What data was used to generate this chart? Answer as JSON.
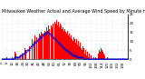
{
  "title": "Milwaukee Weather Actual and Average Wind Speed by Minute mph (Last 24 Hours)",
  "bar_color": "#ff0000",
  "line_color": "#0000cc",
  "background_color": "#ffffff",
  "grid_color": "#cccccc",
  "ylim": [
    0,
    25
  ],
  "n_points": 144,
  "actual_wind": [
    0,
    0,
    0,
    0,
    0,
    0,
    1,
    0,
    0,
    0,
    0,
    0,
    1,
    0,
    0,
    4,
    3,
    0,
    0,
    0,
    0,
    2,
    0,
    3,
    2,
    0,
    6,
    5,
    0,
    0,
    0,
    7,
    0,
    9,
    0,
    11,
    0,
    10,
    13,
    0,
    12,
    0,
    11,
    14,
    13,
    15,
    14,
    0,
    14,
    16,
    15,
    18,
    16,
    19,
    17,
    0,
    19,
    18,
    20,
    0,
    21,
    20,
    22,
    21,
    19,
    21,
    18,
    20,
    19,
    17,
    18,
    16,
    17,
    15,
    14,
    16,
    13,
    14,
    12,
    13,
    11,
    10,
    12,
    11,
    9,
    11,
    8,
    10,
    7,
    9,
    6,
    5,
    7,
    4,
    6,
    3,
    5,
    2,
    4,
    1,
    3,
    0,
    2,
    0,
    0,
    1,
    0,
    1,
    0,
    0,
    3,
    5,
    4,
    6,
    5,
    4,
    3,
    2,
    0,
    0,
    1,
    0,
    0,
    0,
    0,
    0,
    0,
    0,
    0,
    0,
    0,
    0,
    0,
    0,
    0,
    0,
    0,
    0,
    0,
    0,
    0,
    0,
    0,
    0
  ],
  "avg_wind": [
    0,
    0,
    0,
    0,
    0,
    0,
    0,
    0,
    0,
    0,
    0,
    0,
    0,
    0,
    1,
    1,
    1,
    1,
    1,
    1,
    1,
    2,
    2,
    2,
    3,
    3,
    3,
    4,
    4,
    5,
    5,
    5,
    6,
    7,
    7,
    8,
    8,
    9,
    9,
    10,
    10,
    11,
    11,
    12,
    12,
    12,
    13,
    13,
    14,
    14,
    14,
    14,
    15,
    15,
    14,
    14,
    13,
    13,
    12,
    12,
    11,
    11,
    10,
    10,
    9,
    9,
    8,
    8,
    7,
    7,
    6,
    6,
    5,
    5,
    5,
    4,
    4,
    4,
    3,
    3,
    3,
    2,
    2,
    2,
    2,
    2,
    1,
    1,
    1,
    1,
    1,
    1,
    1,
    0,
    0,
    0,
    0,
    0,
    0,
    0,
    0,
    0,
    0,
    0,
    0,
    0,
    0,
    0,
    0,
    0,
    0,
    0,
    0,
    0,
    0,
    0,
    0,
    0,
    0,
    0,
    0,
    0,
    0,
    0,
    0,
    0,
    0,
    0,
    0,
    0,
    0,
    0,
    0,
    0,
    0,
    0,
    0,
    0,
    0,
    0,
    0,
    0,
    0,
    0
  ],
  "xtick_step": 6,
  "yticks": [
    0,
    5,
    10,
    15,
    20,
    25
  ],
  "title_fontsize": 3.5,
  "tick_fontsize": 2.8
}
